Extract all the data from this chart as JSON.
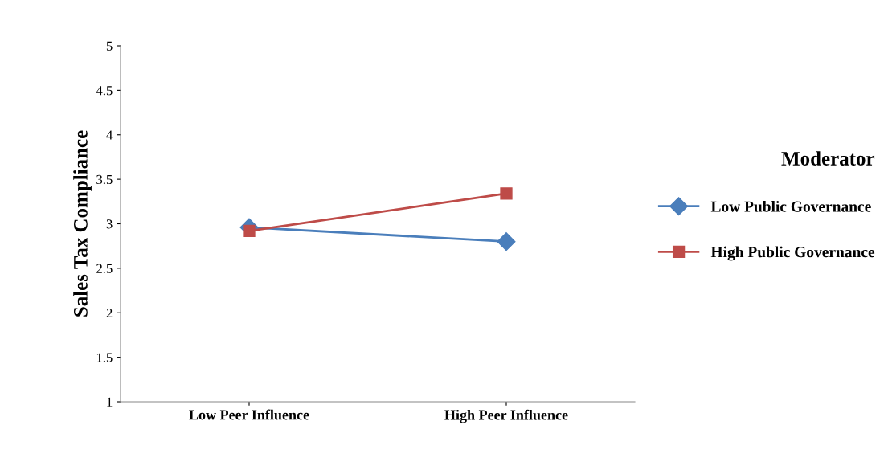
{
  "chart_data": {
    "type": "line",
    "ylabel": "Sales Tax Compliance",
    "legend_title": "Moderator",
    "categories": [
      "Low Peer Influence",
      "High Peer Influence"
    ],
    "series": [
      {
        "name": "Low Public Governance",
        "color": "#4a7ebb",
        "values": [
          2.96,
          2.8
        ],
        "marker": "diamond"
      },
      {
        "name": "High Public Governance",
        "color": "#be4b48",
        "values": [
          2.92,
          3.34
        ],
        "marker": "square"
      }
    ],
    "ylim": [
      1,
      5
    ],
    "yticks": [
      1,
      1.5,
      2,
      2.5,
      3,
      3.5,
      4,
      4.5,
      5
    ],
    "grid": false,
    "legend": "right",
    "line_style": "solid"
  }
}
